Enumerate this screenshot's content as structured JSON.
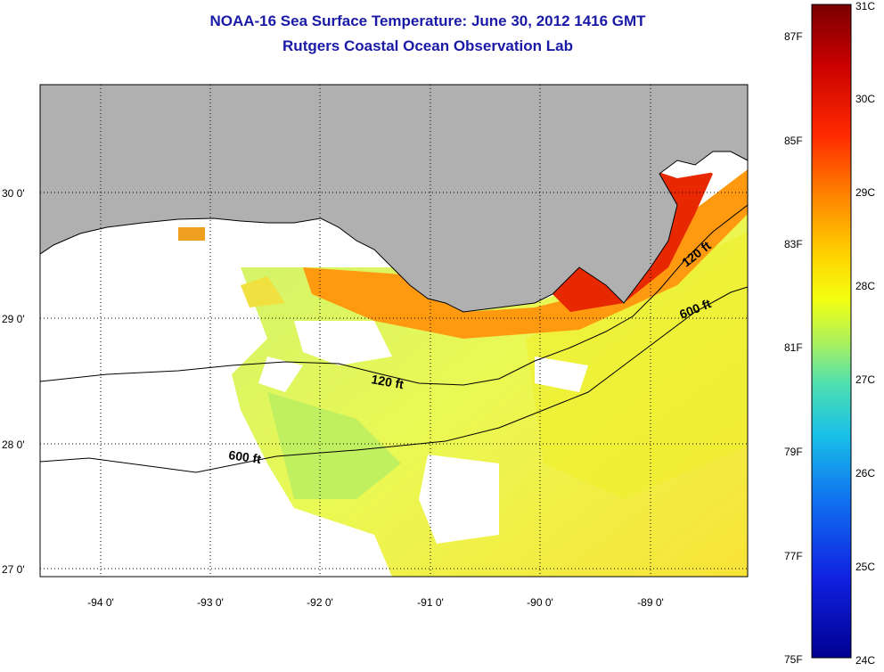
{
  "title": "NOAA-16 Sea Surface Temperature:  June 30, 2012 1416 GMT",
  "subtitle": "Rutgers Coastal Ocean Observation Lab",
  "map": {
    "lat_labels": [
      "30 0'",
      "29 0'",
      "28 0'",
      "27 0'"
    ],
    "lon_labels": [
      "-94 0'",
      "-93 0'",
      "-92 0'",
      "-91 0'",
      "-90 0'",
      "-89 0'"
    ],
    "contour_labels": [
      "120 ft",
      "600 ft",
      "120 ft",
      "600 ft"
    ],
    "land_color": "#b0b0b0"
  },
  "colorbar": {
    "celsius_labels": [
      "31C",
      "30C",
      "29C",
      "28C",
      "27C",
      "26C",
      "25C",
      "24C"
    ],
    "fahrenheit_labels": [
      "87F",
      "85F",
      "83F",
      "81F",
      "79F",
      "77F",
      "75F"
    ],
    "colors": [
      "#7a0000",
      "#c80000",
      "#ff2200",
      "#ff8a00",
      "#ffd000",
      "#f4ff10",
      "#a8f060",
      "#50e0b0",
      "#18c0e8",
      "#1070f0",
      "#1020e0",
      "#000090"
    ]
  }
}
